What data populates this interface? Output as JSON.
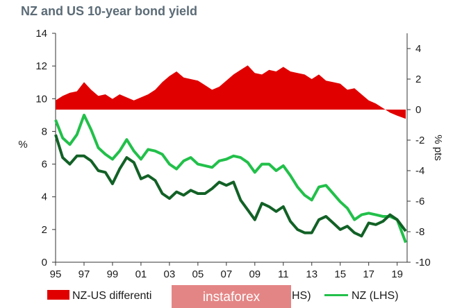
{
  "chart_data": {
    "type": "line",
    "title": "NZ and US 10-year bond yield",
    "ylabel_left": "%",
    "ylabel_right": "% pts",
    "ylim_left": [
      0,
      14
    ],
    "ylim_right": [
      -10,
      5
    ],
    "xlim": [
      1995,
      2019.7
    ],
    "yticks_left": [
      "0",
      "2",
      "4",
      "6",
      "8",
      "10",
      "12",
      "14"
    ],
    "yticks_right": [
      "-10",
      "-8",
      "-6",
      "-4",
      "-2",
      "0",
      "2",
      "4"
    ],
    "xticks": [
      "95",
      "97",
      "99",
      "01",
      "03",
      "05",
      "07",
      "09",
      "11",
      "13",
      "15",
      "17",
      "19"
    ],
    "series": [
      {
        "name": "NZ-US differential (RHS)",
        "type": "area",
        "axis": "right",
        "color": "#e00000",
        "x": [
          1995.0,
          1995.5,
          1996.0,
          1996.5,
          1997.0,
          1997.5,
          1998.0,
          1998.5,
          1999.0,
          1999.5,
          2000.0,
          2000.5,
          2001.0,
          2001.5,
          2002.0,
          2002.5,
          2003.0,
          2003.5,
          2004.0,
          2004.5,
          2005.0,
          2005.5,
          2006.0,
          2006.5,
          2007.0,
          2007.5,
          2008.0,
          2008.5,
          2009.0,
          2009.5,
          2010.0,
          2010.5,
          2011.0,
          2011.5,
          2012.0,
          2012.5,
          2013.0,
          2013.5,
          2014.0,
          2014.5,
          2015.0,
          2015.5,
          2016.0,
          2016.5,
          2017.0,
          2017.5,
          2018.0,
          2018.5,
          2019.0,
          2019.6
        ],
        "values": [
          0.6,
          0.9,
          1.1,
          1.2,
          1.8,
          1.3,
          0.9,
          1.0,
          0.7,
          1.0,
          0.8,
          0.6,
          0.8,
          1.0,
          1.3,
          1.8,
          2.2,
          2.5,
          2.1,
          2.0,
          1.9,
          1.6,
          1.3,
          1.5,
          1.9,
          2.3,
          2.6,
          2.9,
          2.4,
          2.3,
          2.6,
          2.5,
          2.8,
          2.5,
          2.4,
          2.3,
          2.0,
          2.3,
          1.9,
          1.8,
          1.7,
          1.3,
          1.4,
          1.0,
          0.6,
          0.4,
          0.1,
          -0.2,
          -0.4,
          -0.6
        ]
      },
      {
        "name": "NZ (LHS)",
        "type": "line",
        "axis": "left",
        "color": "#22c04a",
        "x": [
          1995.0,
          1995.5,
          1996.0,
          1996.5,
          1997.0,
          1997.5,
          1998.0,
          1998.5,
          1999.0,
          1999.5,
          2000.0,
          2000.5,
          2001.0,
          2001.5,
          2002.0,
          2002.5,
          2003.0,
          2003.5,
          2004.0,
          2004.5,
          2005.0,
          2005.5,
          2006.0,
          2006.5,
          2007.0,
          2007.5,
          2008.0,
          2008.5,
          2009.0,
          2009.5,
          2010.0,
          2010.5,
          2011.0,
          2011.5,
          2012.0,
          2012.5,
          2013.0,
          2013.5,
          2014.0,
          2014.5,
          2015.0,
          2015.5,
          2016.0,
          2016.5,
          2017.0,
          2017.5,
          2018.0,
          2018.5,
          2019.0,
          2019.6
        ],
        "values": [
          8.7,
          7.6,
          7.2,
          7.8,
          9.0,
          8.1,
          7.0,
          6.6,
          6.3,
          6.8,
          7.5,
          6.8,
          6.3,
          6.9,
          6.8,
          6.6,
          6.0,
          5.7,
          6.2,
          6.4,
          6.0,
          5.9,
          5.8,
          6.2,
          6.3,
          6.5,
          6.4,
          6.1,
          5.5,
          6.0,
          6.0,
          5.6,
          5.9,
          5.3,
          4.6,
          4.1,
          3.8,
          4.6,
          4.7,
          4.2,
          3.7,
          3.3,
          2.6,
          2.9,
          3.0,
          2.9,
          2.8,
          2.8,
          2.6,
          1.2
        ]
      },
      {
        "name": "US (LHS)",
        "type": "line",
        "axis": "left",
        "color": "#126126",
        "x": [
          1995.0,
          1995.5,
          1996.0,
          1996.5,
          1997.0,
          1997.5,
          1998.0,
          1998.5,
          1999.0,
          1999.5,
          2000.0,
          2000.5,
          2001.0,
          2001.5,
          2002.0,
          2002.5,
          2003.0,
          2003.5,
          2004.0,
          2004.5,
          2005.0,
          2005.5,
          2006.0,
          2006.5,
          2007.0,
          2007.5,
          2008.0,
          2008.5,
          2009.0,
          2009.5,
          2010.0,
          2010.5,
          2011.0,
          2011.5,
          2012.0,
          2012.5,
          2013.0,
          2013.5,
          2014.0,
          2014.5,
          2015.0,
          2015.5,
          2016.0,
          2016.5,
          2017.0,
          2017.5,
          2018.0,
          2018.5,
          2019.0,
          2019.6
        ],
        "values": [
          7.8,
          6.4,
          6.0,
          6.5,
          6.5,
          6.2,
          5.6,
          5.5,
          4.8,
          5.7,
          6.4,
          6.1,
          5.1,
          5.3,
          5.0,
          4.2,
          3.9,
          4.3,
          4.1,
          4.4,
          4.2,
          4.2,
          4.5,
          4.9,
          4.7,
          4.9,
          3.8,
          3.2,
          2.6,
          3.6,
          3.4,
          3.1,
          3.4,
          2.5,
          2.0,
          1.8,
          1.8,
          2.6,
          2.8,
          2.4,
          2.0,
          2.2,
          1.8,
          1.6,
          2.4,
          2.3,
          2.5,
          2.9,
          2.6,
          1.9
        ]
      }
    ],
    "legend": {
      "position": "bottom",
      "visible_labels": [
        "NZ-US differenti",
        "HS)",
        "NZ (LHS)"
      ]
    }
  },
  "watermark": {
    "text": "instaforex"
  }
}
